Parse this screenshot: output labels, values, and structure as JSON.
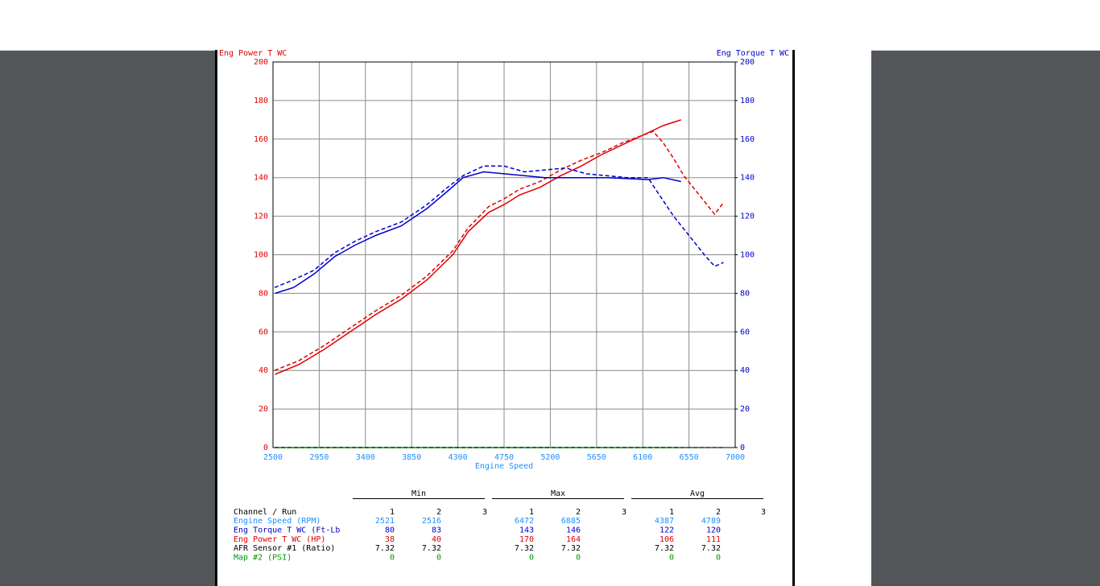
{
  "chart_data": {
    "type": "line",
    "ylabel": "Eng Power T WC",
    "y2label": "Eng Torque T WC",
    "xlabel": "Engine Speed",
    "xlim": [
      2500,
      7000
    ],
    "xticks": [
      2500,
      2950,
      3400,
      3850,
      4300,
      4750,
      5200,
      5650,
      6100,
      6550,
      7000
    ],
    "ylim": [
      0,
      200
    ],
    "yticks": [
      0,
      20,
      40,
      60,
      80,
      100,
      120,
      140,
      160,
      180,
      200
    ],
    "y2lim": [
      0,
      200
    ],
    "y2ticks": [
      0,
      20,
      40,
      60,
      80,
      100,
      120,
      140,
      160,
      180,
      200
    ],
    "grid": true,
    "series": [
      {
        "color": "#e00000",
        "dashed": false,
        "axis": "y",
        "x": [
          2521,
          2750,
          3000,
          3250,
          3500,
          3750,
          4000,
          4250,
          4400,
          4600,
          4750,
          4900,
          5100,
          5300,
          5500,
          5700,
          5900,
          6100,
          6300,
          6472
        ],
        "values": [
          38,
          43,
          51,
          60,
          69,
          77,
          87,
          100,
          112,
          122,
          126,
          131,
          135,
          141,
          146,
          152,
          157,
          162,
          167,
          170
        ]
      },
      {
        "color": "#e00000",
        "dashed": true,
        "axis": "y",
        "x": [
          2516,
          2750,
          3000,
          3250,
          3500,
          3750,
          4000,
          4250,
          4400,
          4600,
          4750,
          4900,
          5100,
          5300,
          5500,
          5700,
          5900,
          6100,
          6200,
          6300,
          6400,
          6500,
          6650,
          6800,
          6885
        ],
        "values": [
          40,
          45,
          53,
          62,
          71,
          79,
          89,
          102,
          114,
          125,
          129,
          134,
          138,
          144,
          149,
          153,
          158,
          162,
          164,
          158,
          150,
          141,
          131,
          121,
          127
        ]
      },
      {
        "color": "#0000cc",
        "dashed": false,
        "axis": "y2",
        "x": [
          2521,
          2700,
          2900,
          3100,
          3300,
          3500,
          3750,
          4000,
          4200,
          4350,
          4550,
          4750,
          4950,
          5150,
          5350,
          5550,
          5750,
          5950,
          6150,
          6300,
          6472
        ],
        "values": [
          80,
          83,
          90,
          99,
          105,
          110,
          115,
          124,
          133,
          140,
          143,
          142,
          141,
          140,
          140,
          140,
          140,
          139.5,
          139,
          140,
          138
        ]
      },
      {
        "color": "#0000cc",
        "dashed": true,
        "axis": "y2",
        "x": [
          2516,
          2700,
          2900,
          3100,
          3300,
          3500,
          3750,
          4000,
          4200,
          4350,
          4550,
          4750,
          4950,
          5150,
          5350,
          5550,
          5750,
          5950,
          6150,
          6250,
          6400,
          6550,
          6700,
          6800,
          6885
        ],
        "values": [
          83,
          87,
          92,
          101,
          107,
          112,
          117,
          126,
          135,
          141,
          146,
          146,
          143,
          144,
          145,
          142,
          141,
          140,
          140,
          132,
          120,
          110,
          100,
          94,
          96
        ]
      },
      {
        "color": "#009900",
        "dashed": false,
        "axis": "y",
        "x": [
          2521,
          6472
        ],
        "values": [
          0,
          0
        ]
      },
      {
        "color": "#114411",
        "dashed": true,
        "axis": "y",
        "x": [
          2516,
          6885
        ],
        "values": [
          0,
          0
        ]
      }
    ]
  },
  "table": {
    "groups": [
      "Min",
      "Max",
      "Avg"
    ],
    "run_header": "Channel / Run",
    "runs": [
      1,
      2,
      3
    ],
    "row_colors": [
      "#1e90ff",
      "#0000cc",
      "#e00000",
      "#000000",
      "#009900"
    ],
    "rows": [
      [
        "Engine Speed (RPM)",
        2521,
        2516,
        6472,
        6885,
        4387,
        4789
      ],
      [
        "Eng Torque T WC (Ft-Lb",
        80,
        83,
        143,
        146,
        122,
        120
      ],
      [
        "Eng Power T WC (HP)",
        38,
        40,
        170,
        164,
        106,
        111
      ],
      [
        "AFR Sensor #1 (Ratio)",
        7.32,
        7.32,
        7.32,
        7.32,
        7.32,
        7.32
      ],
      [
        "Map #2 (PSI)",
        0,
        0,
        0,
        0,
        0,
        0
      ]
    ]
  }
}
